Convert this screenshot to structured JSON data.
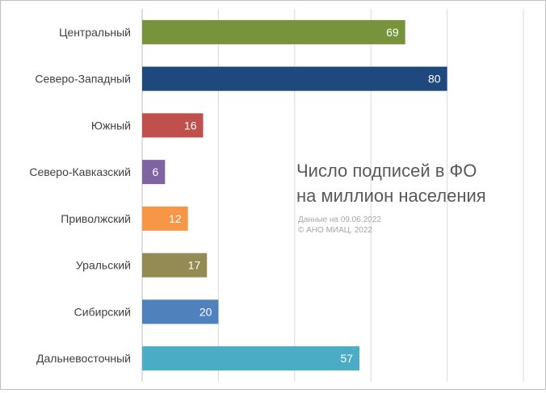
{
  "chart_data": {
    "type": "bar",
    "orientation": "horizontal",
    "title": "Число подписей в ФО на миллион населения",
    "title_lines": [
      "Число подписей в ФО",
      "на миллион населения"
    ],
    "notes": [
      "Данные на 09.06.2022",
      "© АНО МИАЦ, 2022"
    ],
    "categories": [
      "Центральный",
      "Северо-Западный",
      "Южный",
      "Северо-Кавказский",
      "Приволжский",
      "Уральский",
      "Сибирский",
      "Дальневосточный"
    ],
    "values": [
      69,
      80,
      16,
      6,
      12,
      17,
      20,
      57
    ],
    "colors": [
      "#77933c",
      "#1f497d",
      "#c0504d",
      "#8064a2",
      "#f79646",
      "#948a54",
      "#4f81bd",
      "#4bacc6"
    ],
    "xlim": [
      0,
      100
    ],
    "x_gridlines": [
      0,
      20,
      40,
      60,
      80,
      100
    ],
    "x_tick_labels_shown": false,
    "grid": true,
    "legend": "none",
    "xlabel": "",
    "ylabel": ""
  }
}
